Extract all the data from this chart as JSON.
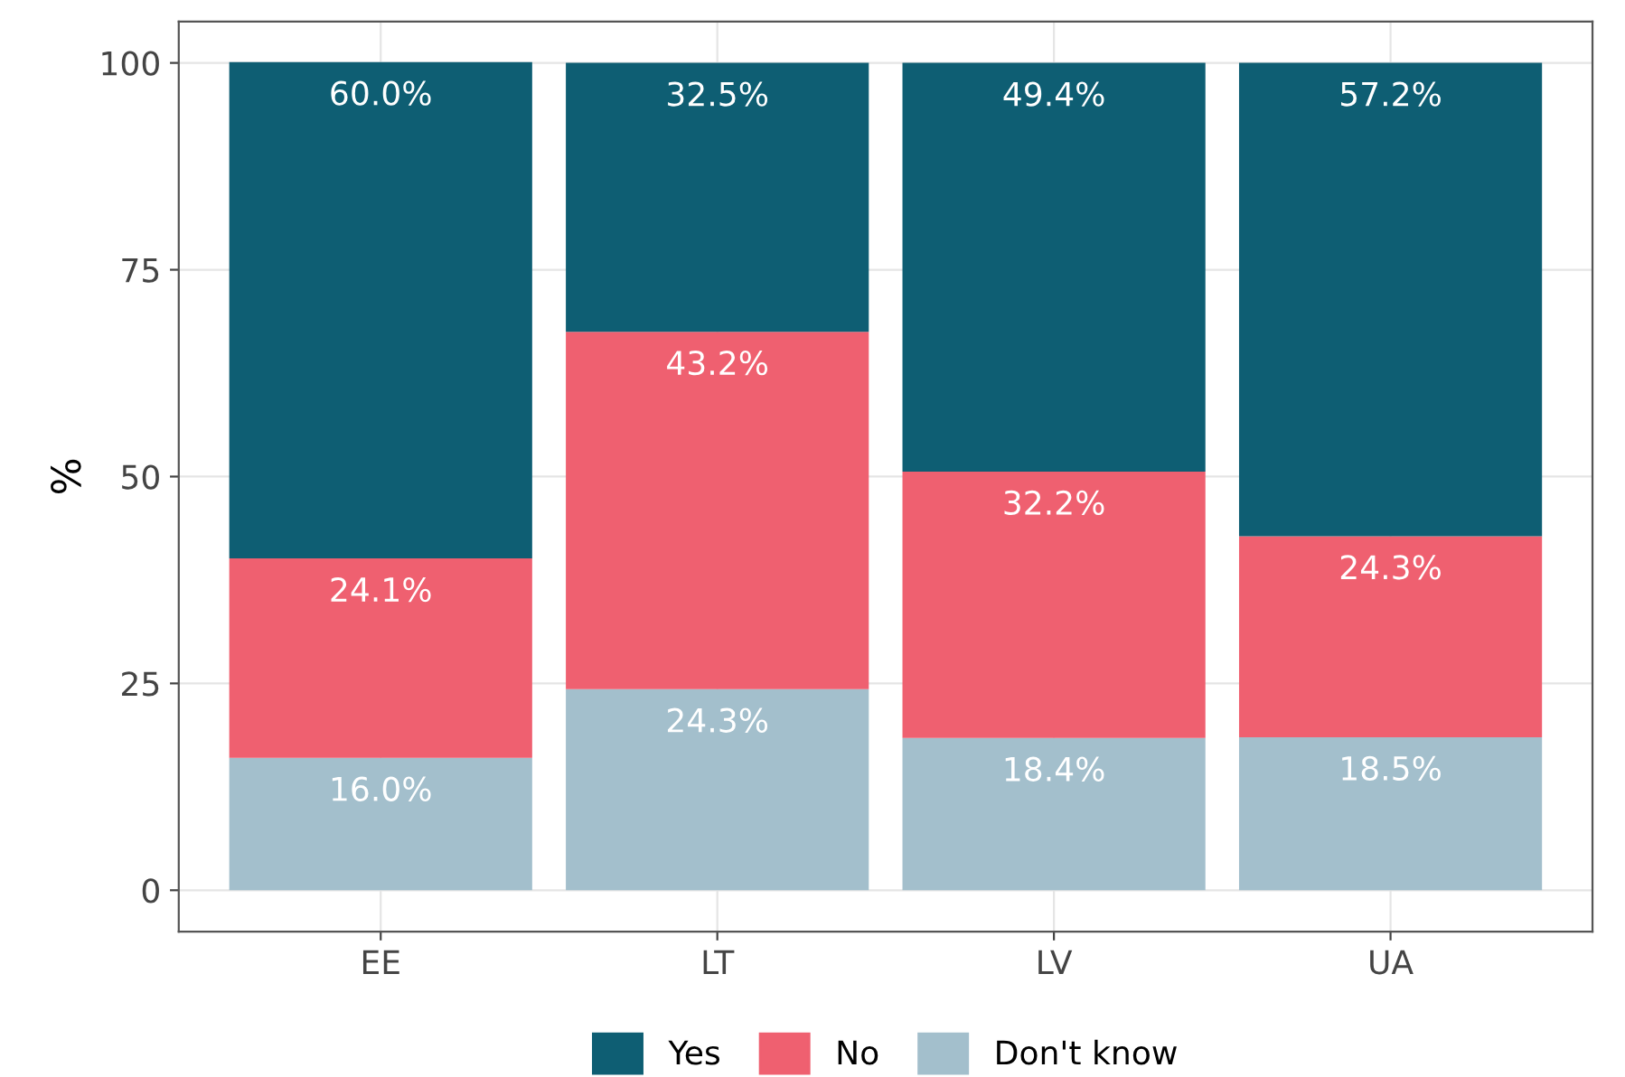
{
  "chart_data": {
    "type": "bar",
    "stacked": true,
    "categories": [
      "EE",
      "LT",
      "LV",
      "UA"
    ],
    "ylabel": "%",
    "series": [
      {
        "name": "Don't know",
        "color": "#a3bfcc",
        "values": [
          16.0,
          24.3,
          18.4,
          18.5
        ],
        "value_labels": [
          "16.0%",
          "24.3%",
          "18.4%",
          "18.5%"
        ]
      },
      {
        "name": "No",
        "color": "#ef6070",
        "values": [
          24.1,
          43.2,
          32.2,
          24.3
        ],
        "value_labels": [
          "24.1%",
          "43.2%",
          "32.2%",
          "24.3%"
        ]
      },
      {
        "name": "Yes",
        "color": "#0e5e73",
        "values": [
          60.0,
          32.5,
          49.4,
          57.2
        ],
        "value_labels": [
          "60.0%",
          "32.5%",
          "49.4%",
          "57.2%"
        ]
      }
    ],
    "ylim": [
      -5,
      105
    ],
    "yticks": [
      0,
      25,
      50,
      75,
      100
    ],
    "grid": true,
    "legend": "bottom"
  }
}
